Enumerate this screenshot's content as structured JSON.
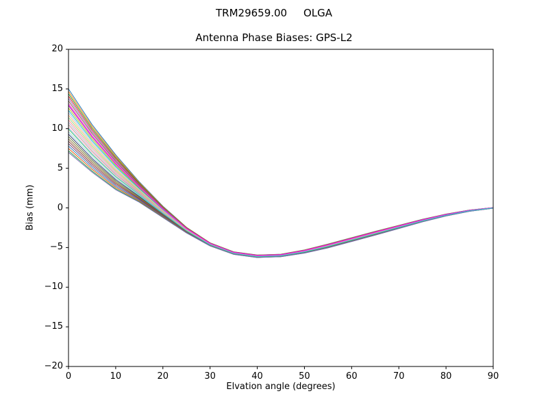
{
  "figure": {
    "suptitle": "TRM29659.00     OLGA",
    "title": "Antenna Phase Biases: GPS-L2",
    "xlabel": "Elvation angle (degrees)",
    "ylabel": "Bias (mm)"
  },
  "chart_data": {
    "type": "line",
    "suptitle": "TRM29659.00     OLGA",
    "title": "Antenna Phase Biases: GPS-L2",
    "xlabel": "Elvation angle (degrees)",
    "ylabel": "Bias (mm)",
    "xlim": [
      0,
      90
    ],
    "ylim": [
      -20,
      20
    ],
    "xticks": [
      0,
      10,
      20,
      30,
      40,
      50,
      60,
      70,
      80,
      90
    ],
    "xticklabels": [
      "0",
      "10",
      "20",
      "30",
      "40",
      "50",
      "60",
      "70",
      "80",
      "90"
    ],
    "yticks": [
      -20,
      -15,
      -10,
      -5,
      0,
      5,
      10,
      15,
      20
    ],
    "yticklabels": [
      "−20",
      "−15",
      "−10",
      "−5",
      "0",
      "5",
      "10",
      "15",
      "20"
    ],
    "grid": false,
    "legend": "none",
    "x": [
      0,
      5,
      10,
      15,
      20,
      25,
      30,
      35,
      40,
      45,
      50,
      55,
      60,
      65,
      70,
      75,
      80,
      85,
      90
    ],
    "base_curve": [
      11.0,
      7.5,
      4.5,
      2.0,
      -0.5,
      -2.8,
      -4.6,
      -5.7,
      -6.1,
      -6.0,
      -5.5,
      -4.8,
      -4.0,
      -3.2,
      -2.4,
      -1.6,
      -0.9,
      -0.35,
      0.0
    ],
    "spread_decay": [
      1.0,
      0.75,
      0.55,
      0.32,
      0.18,
      0.09,
      0.05,
      0.04,
      0.04,
      0.04,
      0.05,
      0.06,
      0.06,
      0.06,
      0.05,
      0.04,
      0.03,
      0.02,
      0.01
    ],
    "series_note": "each line value(x) = base_curve(x) + offset * spread_decay(x); lines span 7..15 mm at 0 deg, dip to about -6.1 mm near 40 deg, return to 0 at 90 deg",
    "series": [
      {
        "offset": 4.0,
        "color": "#1f77b4"
      },
      {
        "offset": 3.7,
        "color": "#ff7f0e"
      },
      {
        "offset": 3.4,
        "color": "#2ca02c"
      },
      {
        "offset": 3.1,
        "color": "#d62728"
      },
      {
        "offset": 2.8,
        "color": "#9467bd"
      },
      {
        "offset": 2.5,
        "color": "#8c564b"
      },
      {
        "offset": 2.2,
        "color": "#e377c2"
      },
      {
        "offset": 1.9,
        "color": "#7f7f7f"
      },
      {
        "offset": 1.6,
        "color": "#bcbd22"
      },
      {
        "offset": 1.3,
        "color": "#17becf"
      },
      {
        "offset": 1.0,
        "color": "#aec7e8"
      },
      {
        "offset": 0.7,
        "color": "#ffbb78"
      },
      {
        "offset": 0.4,
        "color": "#98df8a"
      },
      {
        "offset": 0.1,
        "color": "#ff9896"
      },
      {
        "offset": -0.2,
        "color": "#c5b0d5"
      },
      {
        "offset": -0.5,
        "color": "#c49c94"
      },
      {
        "offset": -0.8,
        "color": "#f7b6d2"
      },
      {
        "offset": -1.1,
        "color": "#dbdb8d"
      },
      {
        "offset": -1.4,
        "color": "#9edae5"
      },
      {
        "offset": -1.7,
        "color": "#393b79"
      },
      {
        "offset": -2.0,
        "color": "#637939"
      },
      {
        "offset": -2.3,
        "color": "#8c6d31"
      },
      {
        "offset": -2.6,
        "color": "#843c39"
      },
      {
        "offset": -2.9,
        "color": "#7b4173"
      },
      {
        "offset": -3.2,
        "color": "#3182bd"
      },
      {
        "offset": -3.5,
        "color": "#e6550d"
      },
      {
        "offset": -3.8,
        "color": "#31a354"
      },
      {
        "offset": -4.0,
        "color": "#756bb1"
      },
      {
        "offset": 2.0,
        "color": "#ff00ff"
      },
      {
        "offset": -1.0,
        "color": "#2dd4bf"
      }
    ]
  }
}
